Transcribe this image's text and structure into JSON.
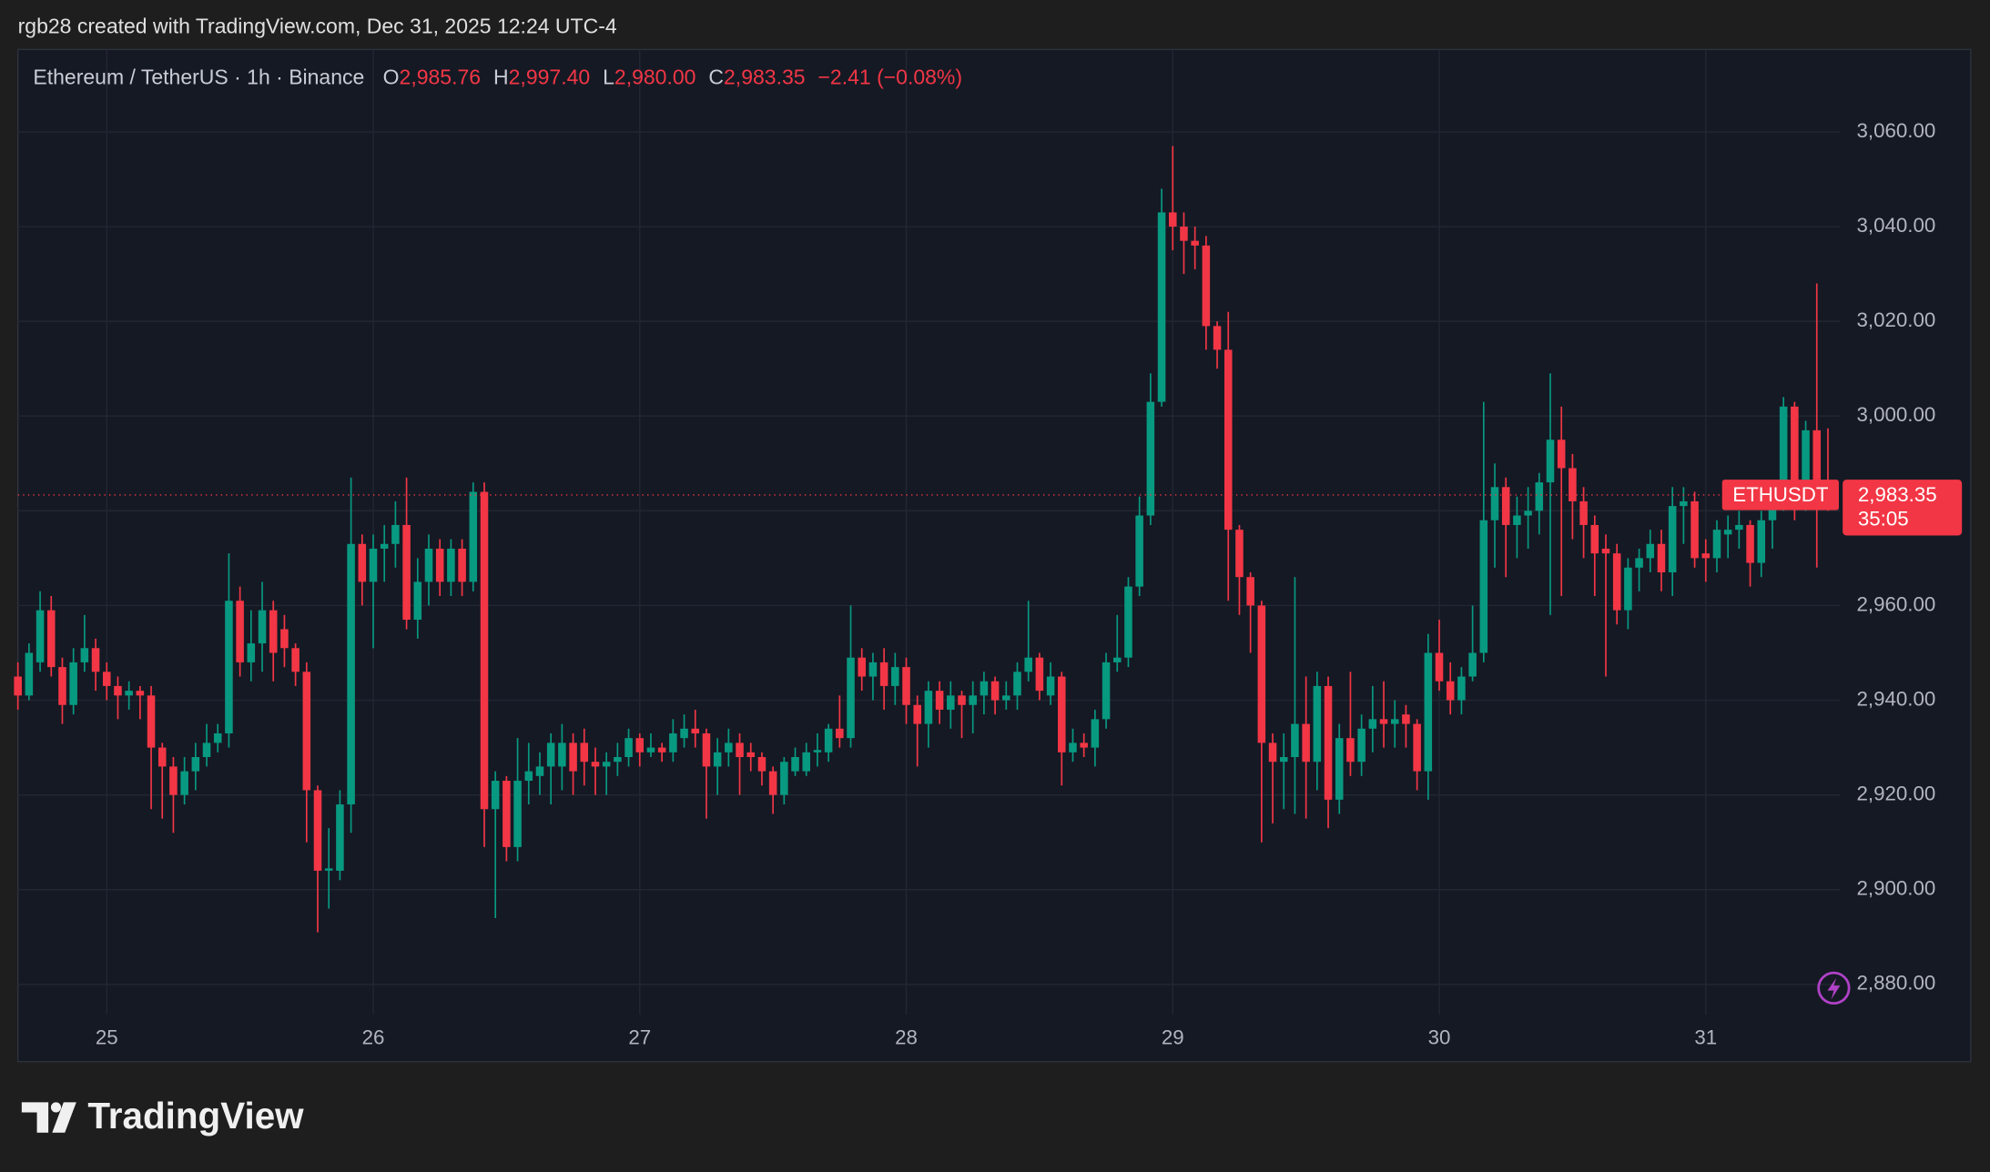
{
  "caption": "rgb28 created with TradingView.com, Dec 31, 2025 12:24 UTC-4",
  "brand": "TradingView",
  "chart_data": {
    "type": "candlestick",
    "title": "Ethereum / TetherUS · 1h · Binance",
    "ohlc_legend": [
      {
        "label": "O",
        "value": "2,985.76"
      },
      {
        "label": "H",
        "value": "2,997.40"
      },
      {
        "label": "L",
        "value": "2,980.00"
      },
      {
        "label": "C",
        "value": "2,983.35"
      }
    ],
    "change": "−2.41 (−0.08%)",
    "symbol_tag": "ETHUSDT",
    "last_price_label": "2,983.35",
    "countdown": "35:05",
    "up_color": "#089981",
    "down_color": "#f23645",
    "grid": true,
    "xlim": [
      0,
      164.1
    ],
    "xticks": [
      {
        "value": 8,
        "label": "25"
      },
      {
        "value": 32,
        "label": "26"
      },
      {
        "value": 56,
        "label": "27"
      },
      {
        "value": 80,
        "label": "28"
      },
      {
        "value": 104,
        "label": "29"
      },
      {
        "value": 128,
        "label": "30"
      },
      {
        "value": 152,
        "label": "31"
      }
    ],
    "ylim": [
      2873.6,
      3077.4
    ],
    "yticks": [
      {
        "value": 2880,
        "label": "2,880.00"
      },
      {
        "value": 2900,
        "label": "2,900.00"
      },
      {
        "value": 2920,
        "label": "2,920.00"
      },
      {
        "value": 2940,
        "label": "2,940.00"
      },
      {
        "value": 2960,
        "label": "2,960.00"
      },
      {
        "value": 2980,
        "label": "2,980.00"
      },
      {
        "value": 3000,
        "label": "3,000.00"
      },
      {
        "value": 3020,
        "label": "3,020.00"
      },
      {
        "value": 3040,
        "label": "3,040.00"
      },
      {
        "value": 3060,
        "label": "3,060.00"
      }
    ],
    "open": [
      2945,
      2941,
      2948,
      2959,
      2947,
      2939,
      2948,
      2951,
      2946,
      2943,
      2941,
      2942,
      2941,
      2930,
      2926,
      2920,
      2925,
      2928,
      2931,
      2933,
      2961,
      2948,
      2952,
      2959,
      2955,
      2951,
      2946,
      2921,
      2904,
      2904,
      2918,
      2973,
      2965,
      2972,
      2973,
      2977,
      2957,
      2965,
      2972,
      2965,
      2972,
      2965,
      2984,
      2917,
      2923,
      2909,
      2923,
      2924,
      2926,
      2926,
      2931,
      2931,
      2927,
      2926,
      2927,
      2928,
      2932,
      2929,
      2930,
      2929,
      2932,
      2934,
      2933,
      2926,
      2929,
      2931,
      2929,
      2928,
      2925,
      2920,
      2925,
      2925,
      2929,
      2929,
      2934,
      2932,
      2949,
      2945,
      2948,
      2943,
      2947,
      2939,
      2935,
      2942,
      2938,
      2941,
      2939,
      2941,
      2944,
      2940,
      2941,
      2946,
      2949,
      2941,
      2945,
      2929,
      2931,
      2930,
      2936,
      2948,
      2949,
      2964,
      2979,
      3003,
      3043,
      3040,
      3037,
      3036,
      3019,
      3014,
      2976,
      2966,
      2960,
      2931,
      2927,
      2928,
      2935,
      2927,
      2943,
      2919,
      2932,
      2927,
      2934,
      2936,
      2935,
      2937,
      2935,
      2925,
      2950,
      2944,
      2940,
      2945,
      2950,
      2978,
      2985,
      2977,
      2979,
      2980,
      2986,
      2995,
      2989,
      2982,
      2977,
      2972,
      2971,
      2959,
      2968,
      2970,
      2973,
      2967,
      2981,
      2982,
      2971,
      2970,
      2975,
      2976,
      2977,
      2969,
      2978,
      2982,
      3002,
      2983,
      2997,
      2985.76
    ],
    "high": [
      2948,
      2952,
      2963,
      2962,
      2949,
      2951,
      2958,
      2953,
      2948,
      2945,
      2944,
      2943,
      2943,
      2931,
      2928,
      2928,
      2931,
      2935,
      2935,
      2971,
      2964,
      2959,
      2965,
      2961,
      2958,
      2952,
      2948,
      2922,
      2913,
      2921,
      2987,
      2975,
      2975,
      2977,
      2982,
      2987,
      2970,
      2975,
      2974,
      2974,
      2974,
      2986,
      2986,
      2925,
      2924,
      2932,
      2931,
      2929,
      2933,
      2935,
      2933,
      2934,
      2930,
      2929,
      2931,
      2934,
      2933,
      2933,
      2931,
      2936,
      2937,
      2938,
      2934,
      2932,
      2934,
      2933,
      2931,
      2929,
      2926,
      2928,
      2930,
      2931,
      2933,
      2935,
      2941,
      2960,
      2951,
      2950,
      2951,
      2950,
      2949,
      2941,
      2944,
      2944,
      2944,
      2942,
      2944,
      2946,
      2945,
      2944,
      2948,
      2961,
      2950,
      2948,
      2946,
      2934,
      2933,
      2938,
      2950,
      2958,
      2966,
      2983,
      3009,
      3048,
      3057,
      3043,
      3040,
      3038,
      3020,
      3022,
      2977,
      2967,
      2961,
      2933,
      2933,
      2966,
      2945,
      2946,
      2945,
      2935,
      2946,
      2937,
      2943,
      2944,
      2940,
      2939,
      2936,
      2954,
      2957,
      2948,
      2947,
      2960,
      3003,
      2990,
      2987,
      2983,
      2985,
      2988,
      3009,
      3002,
      2992,
      2985,
      2979,
      2975,
      2973,
      2970,
      2972,
      2976,
      2976,
      2985,
      2985,
      2984,
      2974,
      2978,
      2979,
      2980,
      2978,
      2980,
      2985,
      3004,
      3003,
      2999,
      3028,
      2997.4
    ],
    "low": [
      2938,
      2940,
      2946,
      2945,
      2935,
      2937,
      2946,
      2942,
      2940,
      2936,
      2938,
      2936,
      2917,
      2915,
      2912,
      2918,
      2921,
      2926,
      2929,
      2930,
      2945,
      2944,
      2946,
      2944,
      2947,
      2943,
      2910,
      2891,
      2896,
      2902,
      2912,
      2960,
      2951,
      2965,
      2968,
      2955,
      2953,
      2960,
      2962,
      2962,
      2962,
      2963,
      2909,
      2894,
      2906,
      2906,
      2918,
      2920,
      2918,
      2921,
      2920,
      2922,
      2920,
      2920,
      2924,
      2926,
      2926,
      2928,
      2927,
      2927,
      2930,
      2930,
      2915,
      2920,
      2926,
      2920,
      2925,
      2922,
      2916,
      2918,
      2924,
      2924,
      2926,
      2927,
      2930,
      2930,
      2942,
      2940,
      2938,
      2939,
      2935,
      2926,
      2930,
      2935,
      2934,
      2932,
      2933,
      2937,
      2937,
      2938,
      2938,
      2944,
      2940,
      2939,
      2922,
      2927,
      2928,
      2926,
      2934,
      2946,
      2947,
      2962,
      2977,
      3002,
      3035,
      3030,
      3031,
      3014,
      3010,
      2961,
      2958,
      2950,
      2910,
      2914,
      2917,
      2916,
      2915,
      2921,
      2913,
      2916,
      2924,
      2924,
      2929,
      2930,
      2930,
      2930,
      2921,
      2919,
      2942,
      2937,
      2937,
      2944,
      2948,
      2968,
      2966,
      2970,
      2972,
      2975,
      2958,
      2962,
      2974,
      2970,
      2962,
      2945,
      2956,
      2955,
      2963,
      2967,
      2963,
      2962,
      2973,
      2968,
      2965,
      2967,
      2970,
      2972,
      2964,
      2966,
      2972,
      2980,
      2978,
      2980,
      2968,
      2980
    ],
    "close": [
      2941,
      2950,
      2959,
      2947,
      2939,
      2948,
      2951,
      2946,
      2943,
      2941,
      2942,
      2941,
      2930,
      2926,
      2920,
      2925,
      2928,
      2931,
      2933,
      2961,
      2948,
      2952,
      2959,
      2950,
      2951,
      2946,
      2921,
      2904,
      2904.5,
      2918,
      2973,
      2965,
      2972,
      2973,
      2977,
      2957,
      2965,
      2972,
      2965,
      2972,
      2965,
      2984,
      2917,
      2923,
      2909,
      2923,
      2925,
      2926,
      2931,
      2931,
      2925,
      2927,
      2926,
      2927,
      2928,
      2932,
      2929,
      2930,
      2929,
      2933,
      2934,
      2933,
      2926,
      2929,
      2931,
      2928,
      2928,
      2925,
      2920,
      2927,
      2928,
      2929,
      2929.5,
      2934,
      2932,
      2949,
      2945,
      2948,
      2943,
      2947,
      2939,
      2935,
      2942,
      2938,
      2941,
      2939,
      2941,
      2944,
      2940,
      2941,
      2946,
      2949,
      2942,
      2945,
      2929,
      2931,
      2930,
      2936,
      2948,
      2949,
      2964,
      2979,
      3003,
      3043,
      3040,
      3037,
      3036,
      3019,
      3014,
      2976,
      2966,
      2960,
      2931,
      2927,
      2928,
      2935,
      2927,
      2943,
      2919,
      2932,
      2927,
      2934,
      2936,
      2935,
      2936,
      2935,
      2925,
      2950,
      2944,
      2940,
      2945,
      2950,
      2978,
      2985,
      2977,
      2979,
      2980,
      2986,
      2995,
      2989,
      2982,
      2977,
      2971,
      2971,
      2959,
      2968,
      2970,
      2973,
      2967,
      2981,
      2982,
      2970,
      2970,
      2976,
      2976,
      2977,
      2969,
      2978,
      2982,
      3002,
      2982,
      2997,
      2983,
      2983.35
    ]
  }
}
